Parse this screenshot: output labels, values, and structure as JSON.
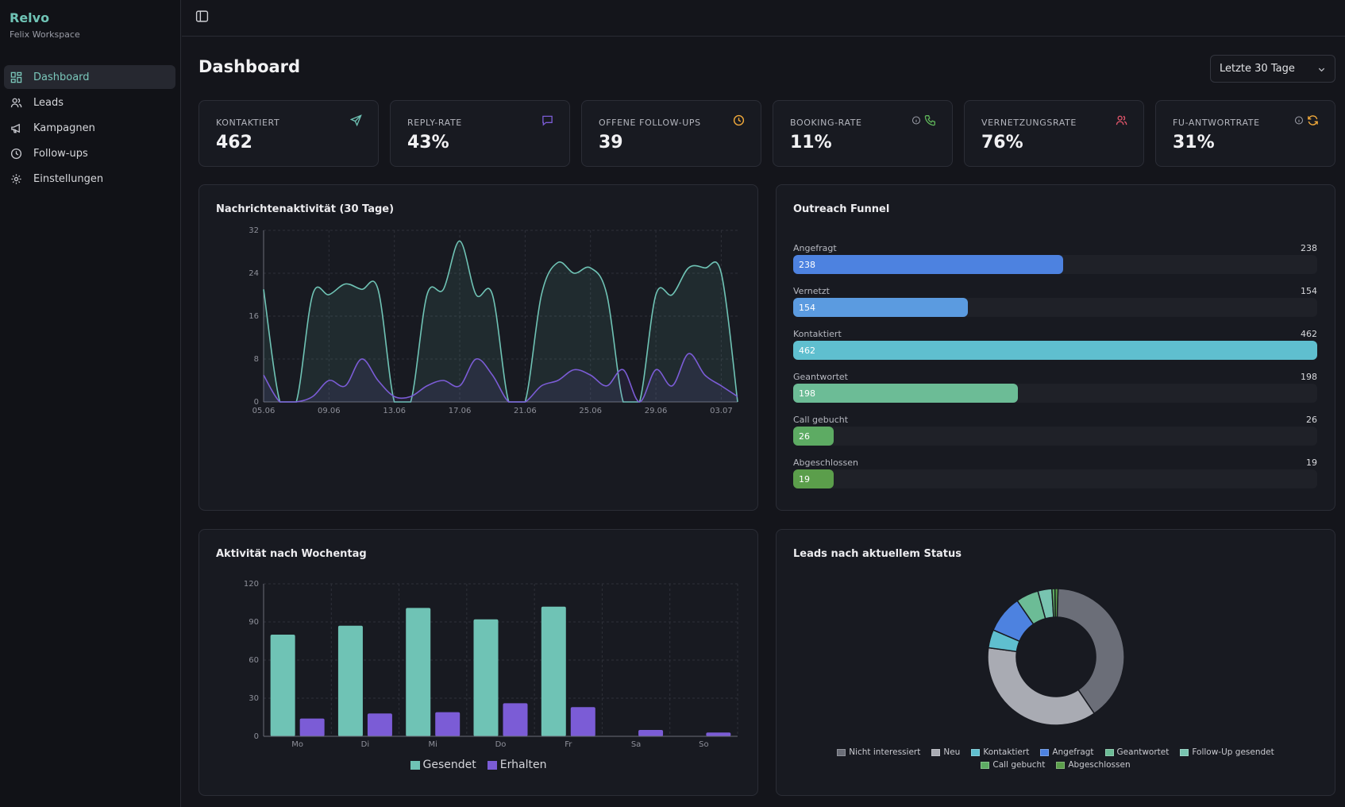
{
  "app": {
    "name": "Relvo",
    "workspace": "Felix Workspace"
  },
  "sidebar": {
    "items": [
      {
        "label": "Dashboard",
        "icon": "dashboard-icon",
        "active": true
      },
      {
        "label": "Leads",
        "icon": "users-icon",
        "active": false
      },
      {
        "label": "Kampagnen",
        "icon": "megaphone-icon",
        "active": false
      },
      {
        "label": "Follow-ups",
        "icon": "clock-icon",
        "active": false
      },
      {
        "label": "Einstellungen",
        "icon": "gear-icon",
        "active": false
      }
    ]
  },
  "header": {
    "title": "Dashboard",
    "range_select": {
      "value": "Letzte 30 Tage"
    }
  },
  "kpis": [
    {
      "label": "KONTAKTIERT",
      "value": "462",
      "icons": [
        "send-icon"
      ],
      "color": "#6fc3b5"
    },
    {
      "label": "REPLY-RATE",
      "value": "43%",
      "icons": [
        "message-icon"
      ],
      "color": "#7b5cd6"
    },
    {
      "label": "OFFENE FOLLOW-UPS",
      "value": "39",
      "icons": [
        "clock-icon"
      ],
      "color": "#f0a93b"
    },
    {
      "label": "BOOKING-RATE",
      "value": "11%",
      "icons": [
        "info-icon",
        "phone-icon"
      ],
      "color": "#5fb55a"
    },
    {
      "label": "VERNETZUNGSRATE",
      "value": "76%",
      "icons": [
        "users-icon"
      ],
      "color": "#e2566b"
    },
    {
      "label": "FU-ANTWORTRATE",
      "value": "31%",
      "icons": [
        "info-icon",
        "refresh-icon"
      ],
      "color": "#f0a93b"
    }
  ],
  "charts": {
    "activity": {
      "title": "Nachrichtenaktivität (30 Tage)",
      "chart_data": {
        "type": "area",
        "x": [
          "05.06",
          "06.06",
          "07.06",
          "08.06",
          "09.06",
          "10.06",
          "11.06",
          "12.06",
          "13.06",
          "14.06",
          "15.06",
          "16.06",
          "17.06",
          "18.06",
          "19.06",
          "20.06",
          "21.06",
          "22.06",
          "23.06",
          "24.06",
          "25.06",
          "26.06",
          "27.06",
          "28.06",
          "29.06",
          "30.06",
          "01.07",
          "02.07",
          "03.07",
          "04.07"
        ],
        "xticks": [
          "05.06",
          "09.06",
          "13.06",
          "17.06",
          "21.06",
          "25.06",
          "29.06",
          "03.07"
        ],
        "ylim": [
          0,
          32
        ],
        "yticks": [
          0,
          8,
          16,
          24,
          32
        ],
        "grid": true,
        "series": [
          {
            "color": "#6fc3b5",
            "values": [
              21,
              0,
              0,
              20,
              20,
              22,
              21,
              21,
              0,
              0,
              20,
              21,
              30,
              20,
              20,
              0,
              0,
              20,
              26,
              24,
              25,
              20,
              0,
              0,
              20,
              20,
              25,
              25,
              24,
              0
            ]
          },
          {
            "color": "#7b5cd6",
            "values": [
              5,
              0,
              0,
              1,
              4,
              3,
              8,
              4,
              1,
              1,
              3,
              4,
              3,
              8,
              5,
              0,
              0,
              3,
              4,
              6,
              5,
              3,
              6,
              0,
              6,
              3,
              9,
              5,
              3,
              1
            ]
          }
        ]
      }
    },
    "funnel": {
      "title": "Outreach Funnel",
      "max": 462,
      "stages": [
        {
          "label": "Angefragt",
          "value": 238,
          "color": "#4d82e0"
        },
        {
          "label": "Vernetzt",
          "value": 154,
          "color": "#5b9be0"
        },
        {
          "label": "Kontaktiert",
          "value": 462,
          "color": "#5fbfcf"
        },
        {
          "label": "Geantwortet",
          "value": 198,
          "color": "#6cbc96"
        },
        {
          "label": "Call gebucht",
          "value": 26,
          "color": "#5dab63"
        },
        {
          "label": "Abgeschlossen",
          "value": 19,
          "color": "#5b9e4b"
        }
      ]
    },
    "weekday": {
      "title": "Aktivität nach Wochentag",
      "chart_data": {
        "type": "bar",
        "categories": [
          "Mo",
          "Di",
          "Mi",
          "Do",
          "Fr",
          "Sa",
          "So"
        ],
        "ylim": [
          0,
          120
        ],
        "yticks": [
          0,
          30,
          60,
          90,
          120
        ],
        "grid": true,
        "legend": "bottom",
        "series": [
          {
            "name": "Gesendet",
            "color": "#6fc3b5",
            "values": [
              80,
              87,
              101,
              92,
              102,
              0,
              0
            ]
          },
          {
            "name": "Erhalten",
            "color": "#7b5cd6",
            "values": [
              14,
              18,
              19,
              26,
              23,
              5,
              3
            ]
          }
        ]
      }
    },
    "status": {
      "title": "Leads nach aktuellem Status",
      "chart_data": {
        "type": "pie",
        "donut": true,
        "legend": "bottom",
        "slices": [
          {
            "name": "Nicht interessiert",
            "value": 278,
            "color": "#6b6e78"
          },
          {
            "name": "Neu",
            "value": 254,
            "color": "#a9abb3"
          },
          {
            "name": "Kontaktiert",
            "value": 30,
            "color": "#5fbfcf"
          },
          {
            "name": "Angefragt",
            "value": 62,
            "color": "#4d82e0"
          },
          {
            "name": "Geantwortet",
            "value": 37,
            "color": "#6cbc96"
          },
          {
            "name": "Follow-Up gesendet",
            "value": 23,
            "color": "#78c4b0"
          },
          {
            "name": "Call gebucht",
            "value": 5,
            "color": "#5dab63"
          },
          {
            "name": "Abgeschlossen",
            "value": 5,
            "color": "#5b9e4b"
          }
        ]
      }
    }
  }
}
